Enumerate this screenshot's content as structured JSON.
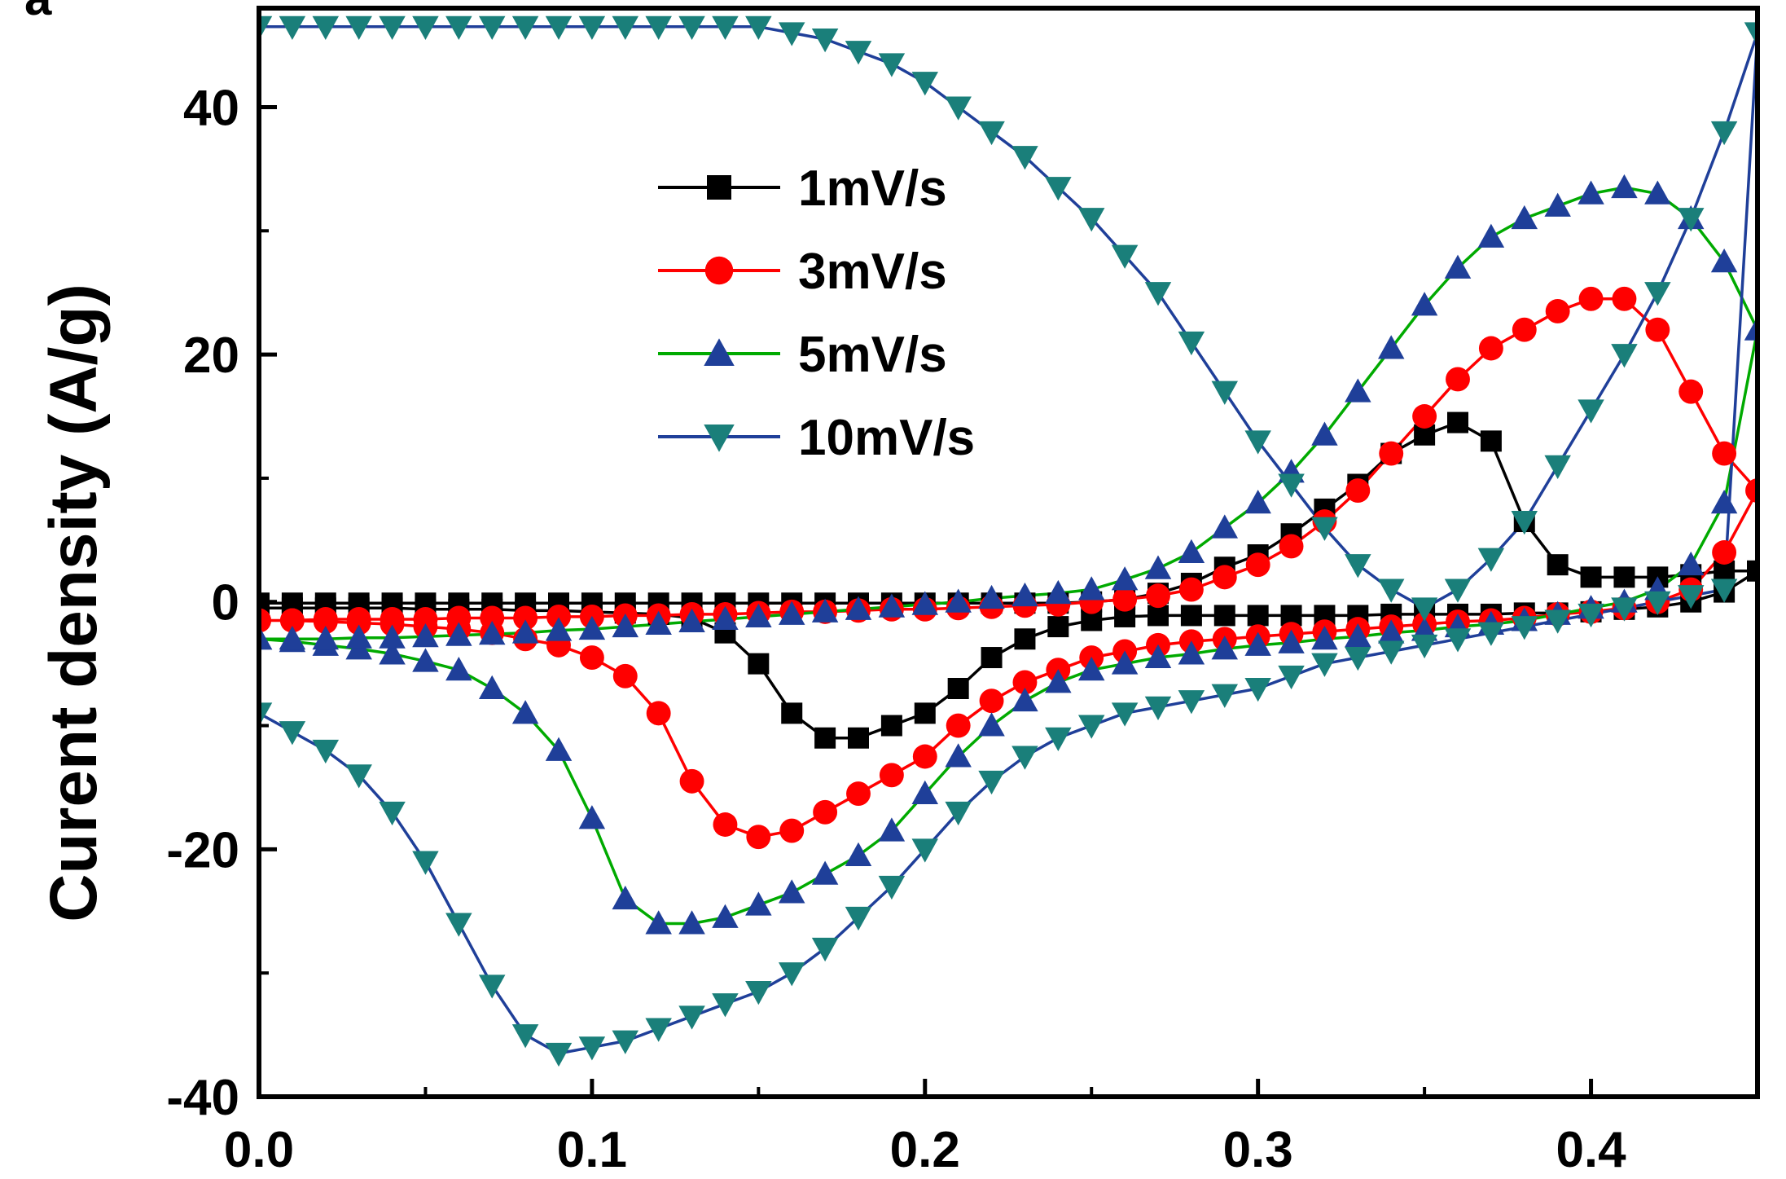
{
  "panel_label": "a",
  "chart_data": {
    "type": "line",
    "title": "",
    "xlabel": "",
    "ylabel": "Curent density (A/g)",
    "xlim": [
      0.0,
      0.45
    ],
    "ylim": [
      -40,
      48
    ],
    "xticks": [
      0.0,
      0.1,
      0.2,
      0.3,
      0.4
    ],
    "xtick_labels": [
      "0.0",
      "0.1",
      "0.2",
      "0.3",
      "0.4"
    ],
    "yticks": [
      -40,
      -20,
      0,
      20,
      40
    ],
    "ytick_labels": [
      "-40",
      "-20",
      "0",
      "20",
      "40"
    ],
    "grid": false,
    "legend_position": "top-left",
    "series": [
      {
        "name": "1mV/s",
        "line_color": "#000000",
        "marker_color": "#000000",
        "marker": "square",
        "x": [
          0.0,
          0.01,
          0.02,
          0.03,
          0.04,
          0.05,
          0.06,
          0.07,
          0.08,
          0.09,
          0.1,
          0.11,
          0.12,
          0.13,
          0.14,
          0.15,
          0.16,
          0.17,
          0.18,
          0.19,
          0.2,
          0.21,
          0.22,
          0.23,
          0.24,
          0.25,
          0.26,
          0.27,
          0.28,
          0.29,
          0.3,
          0.31,
          0.32,
          0.33,
          0.34,
          0.35,
          0.36,
          0.37,
          0.38,
          0.39,
          0.4,
          0.41,
          0.42,
          0.43,
          0.44,
          0.45,
          0.44,
          0.43,
          0.42,
          0.41,
          0.4,
          0.39,
          0.38,
          0.37,
          0.36,
          0.35,
          0.34,
          0.33,
          0.32,
          0.31,
          0.3,
          0.29,
          0.28,
          0.27,
          0.26,
          0.25,
          0.24,
          0.23,
          0.22,
          0.21,
          0.2,
          0.19,
          0.18,
          0.17,
          0.16,
          0.15,
          0.14,
          0.13,
          0.12,
          0.11,
          0.1,
          0.09,
          0.08,
          0.07,
          0.06,
          0.05,
          0.04,
          0.03,
          0.02,
          0.01,
          0.0
        ],
        "y": [
          -0.5,
          -0.5,
          -0.5,
          -0.5,
          -0.5,
          -0.6,
          -0.6,
          -0.6,
          -0.7,
          -0.7,
          -0.8,
          -0.9,
          -1.0,
          -1.3,
          -2.5,
          -5.0,
          -9.0,
          -11.0,
          -11.0,
          -10.0,
          -9.0,
          -7.0,
          -4.5,
          -3.0,
          -2.0,
          -1.5,
          -1.2,
          -1.1,
          -1.1,
          -1.1,
          -1.1,
          -1.1,
          -1.1,
          -1.1,
          -1.0,
          -1.0,
          -1.0,
          -1.0,
          -0.9,
          -0.9,
          -0.8,
          -0.6,
          -0.4,
          0.0,
          0.8,
          2.5,
          2.5,
          2.2,
          2.0,
          2.0,
          2.0,
          3.0,
          6.5,
          13.0,
          14.5,
          13.5,
          12.0,
          9.5,
          7.5,
          5.5,
          3.8,
          2.8,
          1.5,
          0.7,
          0.2,
          0.0,
          -0.1,
          -0.1,
          -0.1,
          -0.1,
          -0.1,
          -0.1,
          -0.1,
          -0.1,
          -0.1,
          -0.1,
          -0.1,
          -0.1,
          -0.1,
          -0.1,
          -0.1,
          -0.1,
          -0.1,
          -0.1,
          -0.1,
          -0.1,
          -0.1,
          -0.1,
          -0.1,
          -0.1,
          -0.1
        ]
      },
      {
        "name": "3mV/s",
        "line_color": "#ff0000",
        "marker_color": "#ff0000",
        "marker": "circle",
        "x": [
          0.0,
          0.01,
          0.02,
          0.03,
          0.04,
          0.05,
          0.06,
          0.07,
          0.08,
          0.09,
          0.1,
          0.11,
          0.12,
          0.13,
          0.14,
          0.15,
          0.16,
          0.17,
          0.18,
          0.19,
          0.2,
          0.21,
          0.22,
          0.23,
          0.24,
          0.25,
          0.26,
          0.27,
          0.28,
          0.29,
          0.3,
          0.31,
          0.32,
          0.33,
          0.34,
          0.35,
          0.36,
          0.37,
          0.38,
          0.39,
          0.4,
          0.41,
          0.42,
          0.43,
          0.44,
          0.45,
          0.44,
          0.43,
          0.42,
          0.41,
          0.4,
          0.39,
          0.38,
          0.37,
          0.36,
          0.35,
          0.34,
          0.33,
          0.32,
          0.31,
          0.3,
          0.29,
          0.28,
          0.27,
          0.26,
          0.25,
          0.24,
          0.23,
          0.22,
          0.21,
          0.2,
          0.19,
          0.18,
          0.17,
          0.16,
          0.15,
          0.14,
          0.13,
          0.12,
          0.11,
          0.1,
          0.09,
          0.08,
          0.07,
          0.06,
          0.05,
          0.04,
          0.03,
          0.02,
          0.01,
          0.0
        ],
        "y": [
          -1.5,
          -1.5,
          -1.6,
          -1.7,
          -1.8,
          -2.0,
          -2.2,
          -2.5,
          -3.0,
          -3.5,
          -4.5,
          -6.0,
          -9.0,
          -14.5,
          -18.0,
          -19.0,
          -18.5,
          -17.0,
          -15.5,
          -14.0,
          -12.5,
          -10.0,
          -8.0,
          -6.5,
          -5.5,
          -4.5,
          -4.0,
          -3.5,
          -3.2,
          -3.0,
          -2.8,
          -2.6,
          -2.4,
          -2.2,
          -2.0,
          -1.8,
          -1.6,
          -1.5,
          -1.3,
          -1.0,
          -0.8,
          -0.5,
          0.0,
          1.0,
          4.0,
          9.0,
          12.0,
          17.0,
          22.0,
          24.5,
          24.5,
          23.5,
          22.0,
          20.5,
          18.0,
          15.0,
          12.0,
          9.0,
          6.5,
          4.5,
          3.0,
          2.0,
          1.0,
          0.5,
          0.2,
          0.0,
          -0.2,
          -0.3,
          -0.4,
          -0.5,
          -0.6,
          -0.6,
          -0.7,
          -0.8,
          -0.8,
          -0.9,
          -1.0,
          -1.0,
          -1.1,
          -1.1,
          -1.2,
          -1.2,
          -1.3,
          -1.3,
          -1.3,
          -1.4,
          -1.4,
          -1.4,
          -1.4,
          -1.5,
          -1.5
        ]
      },
      {
        "name": "5mV/s",
        "line_color": "#00aa00",
        "marker_color": "#1f3f99",
        "marker": "triangle-up",
        "x": [
          0.0,
          0.01,
          0.02,
          0.03,
          0.04,
          0.05,
          0.06,
          0.07,
          0.08,
          0.09,
          0.1,
          0.11,
          0.12,
          0.13,
          0.14,
          0.15,
          0.16,
          0.17,
          0.18,
          0.19,
          0.2,
          0.21,
          0.22,
          0.23,
          0.24,
          0.25,
          0.26,
          0.27,
          0.28,
          0.29,
          0.3,
          0.31,
          0.32,
          0.33,
          0.34,
          0.35,
          0.36,
          0.37,
          0.38,
          0.39,
          0.4,
          0.41,
          0.42,
          0.43,
          0.44,
          0.45,
          0.44,
          0.43,
          0.42,
          0.41,
          0.4,
          0.39,
          0.38,
          0.37,
          0.36,
          0.35,
          0.34,
          0.33,
          0.32,
          0.31,
          0.3,
          0.29,
          0.28,
          0.27,
          0.26,
          0.25,
          0.24,
          0.23,
          0.22,
          0.21,
          0.2,
          0.19,
          0.18,
          0.17,
          0.16,
          0.15,
          0.14,
          0.13,
          0.12,
          0.11,
          0.1,
          0.09,
          0.08,
          0.07,
          0.06,
          0.05,
          0.04,
          0.03,
          0.02,
          0.01,
          0.0
        ],
        "y": [
          -3.0,
          -3.2,
          -3.5,
          -3.8,
          -4.2,
          -4.8,
          -5.5,
          -7.0,
          -9.0,
          -12.0,
          -17.5,
          -24.0,
          -26.0,
          -26.0,
          -25.5,
          -24.5,
          -23.5,
          -22.0,
          -20.5,
          -18.5,
          -15.5,
          -12.5,
          -10.0,
          -8.0,
          -6.5,
          -5.5,
          -5.0,
          -4.5,
          -4.2,
          -3.8,
          -3.5,
          -3.3,
          -3.0,
          -2.8,
          -2.5,
          -2.3,
          -2.0,
          -1.8,
          -1.5,
          -1.0,
          -0.5,
          0.0,
          1.0,
          3.0,
          8.0,
          22.0,
          27.5,
          31.0,
          33.0,
          33.5,
          33.0,
          32.0,
          31.0,
          29.5,
          27.0,
          24.0,
          20.5,
          17.0,
          13.5,
          10.5,
          8.0,
          6.0,
          4.0,
          2.7,
          1.8,
          1.0,
          0.7,
          0.5,
          0.3,
          0.0,
          -0.2,
          -0.4,
          -0.6,
          -0.8,
          -1.0,
          -1.2,
          -1.4,
          -1.6,
          -1.8,
          -2.0,
          -2.2,
          -2.3,
          -2.5,
          -2.6,
          -2.7,
          -2.8,
          -2.9,
          -2.9,
          -3.0,
          -3.0,
          -3.0
        ]
      },
      {
        "name": "10mV/s",
        "line_color": "#1f3f99",
        "marker_color": "#1a7f7a",
        "marker": "triangle-down",
        "x": [
          0.0,
          0.01,
          0.02,
          0.03,
          0.04,
          0.05,
          0.06,
          0.07,
          0.08,
          0.09,
          0.1,
          0.11,
          0.12,
          0.13,
          0.14,
          0.15,
          0.16,
          0.17,
          0.18,
          0.19,
          0.2,
          0.21,
          0.22,
          0.23,
          0.24,
          0.25,
          0.26,
          0.27,
          0.28,
          0.29,
          0.3,
          0.31,
          0.32,
          0.33,
          0.34,
          0.35,
          0.36,
          0.37,
          0.38,
          0.39,
          0.4,
          0.41,
          0.42,
          0.43,
          0.44,
          0.45,
          0.44,
          0.43,
          0.42,
          0.41,
          0.4,
          0.39,
          0.38,
          0.37,
          0.36,
          0.35,
          0.34,
          0.33,
          0.32,
          0.31,
          0.3,
          0.29,
          0.28,
          0.27,
          0.26,
          0.25,
          0.24,
          0.23,
          0.22,
          0.21,
          0.2,
          0.19,
          0.18,
          0.17,
          0.16,
          0.15,
          0.14,
          0.13,
          0.12,
          0.11,
          0.1,
          0.09,
          0.08,
          0.07,
          0.06,
          0.05,
          0.04,
          0.03,
          0.02,
          0.01,
          0.0
        ],
        "y": [
          -9.0,
          -10.5,
          -12.0,
          -14.0,
          -17.0,
          -21.0,
          -26.0,
          -31.0,
          -35.0,
          -36.5,
          -36.0,
          -35.5,
          -34.5,
          -33.5,
          -32.5,
          -31.5,
          -30.0,
          -28.0,
          -25.5,
          -23.0,
          -20.0,
          -17.0,
          -14.5,
          -12.5,
          -11.0,
          -10.0,
          -9.0,
          -8.5,
          -8.0,
          -7.5,
          -7.0,
          -6.0,
          -5.0,
          -4.5,
          -4.0,
          -3.5,
          -3.0,
          -2.5,
          -2.0,
          -1.5,
          -1.0,
          -0.5,
          0.0,
          0.5,
          1.0,
          46.0,
          38.0,
          31.0,
          25.0,
          20.0,
          15.5,
          11.0,
          6.5,
          3.5,
          1.0,
          -0.5,
          1.0,
          3.0,
          6.0,
          9.5,
          13.0,
          17.0,
          21.0,
          25.0,
          28.0,
          31.0,
          33.5,
          36.0,
          38.0,
          40.0,
          42.0,
          43.5,
          44.5,
          45.5,
          46.0,
          46.5,
          46.5,
          46.5,
          46.5,
          46.5,
          46.5,
          46.5,
          46.5,
          46.5,
          46.5,
          46.5,
          46.5,
          46.5,
          46.5,
          46.5,
          46.5
        ]
      }
    ]
  }
}
